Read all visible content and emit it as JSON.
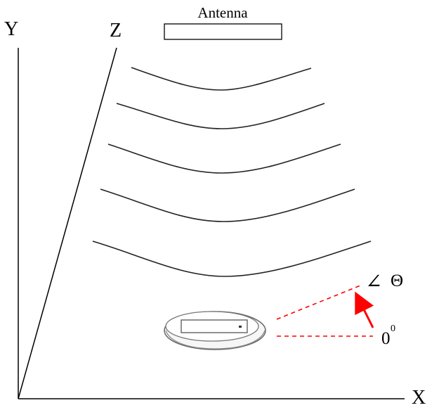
{
  "axes": {
    "x_label": "X",
    "y_label": "Y",
    "z_label": "Z"
  },
  "antenna": {
    "label": "Antenna"
  },
  "angle": {
    "symbol": "∠",
    "theta": "Θ",
    "zero_base": "0",
    "zero_sup": "0"
  },
  "wavefronts": {
    "count": 5
  },
  "colors": {
    "lines": "#000000",
    "angle_guide": "#ff0000"
  }
}
